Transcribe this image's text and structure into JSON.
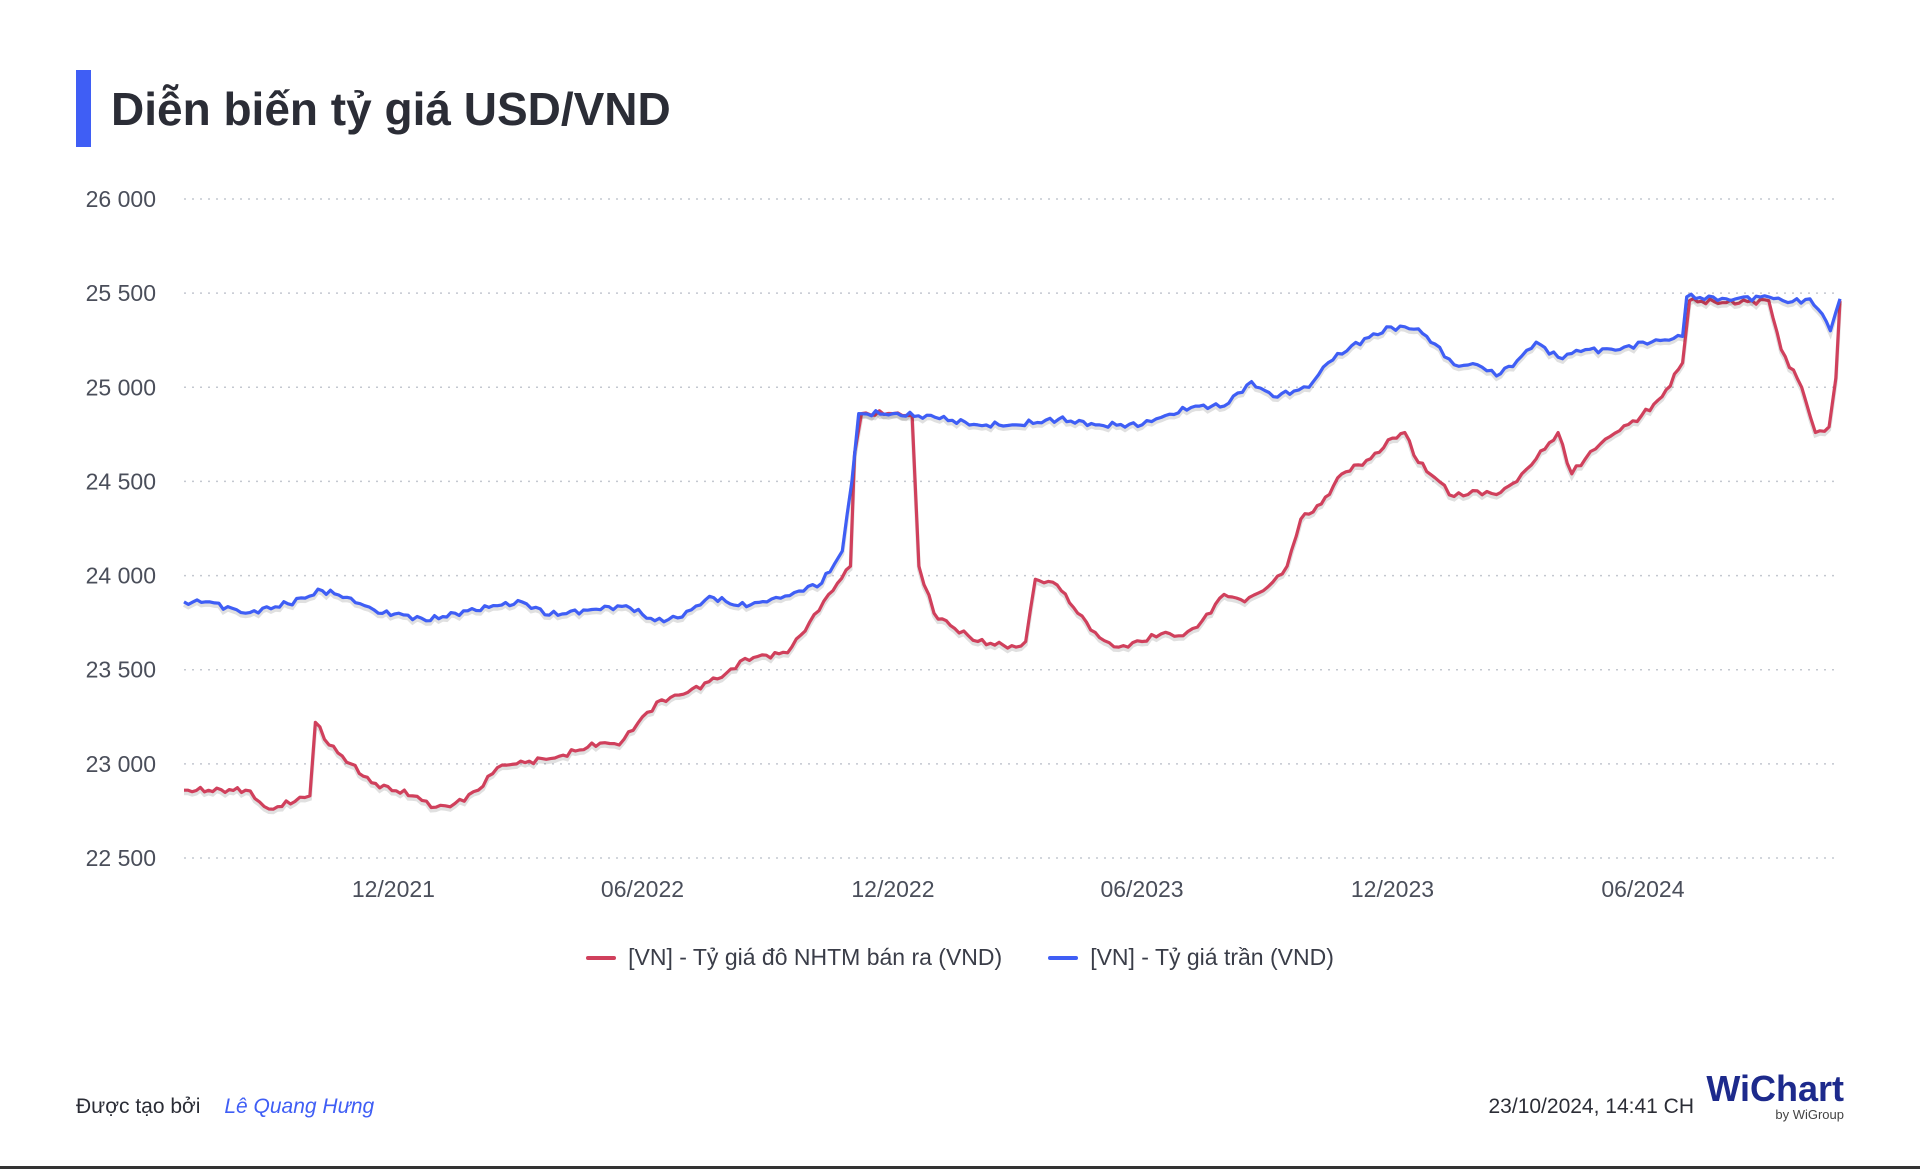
{
  "title": "Diễn biến tỷ giá USD/VND",
  "chart_data": {
    "type": "line",
    "ylim": [
      22500,
      26000
    ],
    "y_ticks": [
      22500,
      23000,
      23500,
      24000,
      24500,
      25000,
      25500,
      26000
    ],
    "y_tick_labels": [
      "22 500",
      "23 000",
      "23 500",
      "24 000",
      "24 500",
      "25 000",
      "25 500",
      "26 000"
    ],
    "x_range": [
      "2021-07-01",
      "2024-10-23"
    ],
    "x_ticks": [
      "2021-12-01",
      "2022-06-01",
      "2022-12-01",
      "2023-06-01",
      "2023-12-01",
      "2024-06-01"
    ],
    "x_tick_labels": [
      "12/2021",
      "06/2022",
      "12/2022",
      "06/2023",
      "12/2023",
      "06/2024"
    ],
    "grid": true,
    "legend_position": "bottom",
    "series": [
      {
        "name": "[VN] - Tỷ giá đô NHTM bán ra (VND)",
        "color": "#d0405c",
        "points": [
          [
            "2021-07-01",
            22860
          ],
          [
            "2021-08-15",
            22860
          ],
          [
            "2021-09-01",
            22760
          ],
          [
            "2021-09-20",
            22800
          ],
          [
            "2021-10-01",
            22830
          ],
          [
            "2021-10-05",
            23220
          ],
          [
            "2021-10-15",
            23100
          ],
          [
            "2021-10-31",
            23000
          ],
          [
            "2021-11-15",
            22900
          ],
          [
            "2021-12-15",
            22830
          ],
          [
            "2022-01-01",
            22770
          ],
          [
            "2022-01-15",
            22790
          ],
          [
            "2022-02-01",
            22860
          ],
          [
            "2022-02-15",
            22980
          ],
          [
            "2022-03-01",
            23000
          ],
          [
            "2022-04-01",
            23040
          ],
          [
            "2022-05-01",
            23110
          ],
          [
            "2022-05-15",
            23100
          ],
          [
            "2022-06-01",
            23250
          ],
          [
            "2022-06-15",
            23340
          ],
          [
            "2022-07-01",
            23370
          ],
          [
            "2022-08-01",
            23480
          ],
          [
            "2022-08-15",
            23560
          ],
          [
            "2022-09-15",
            23590
          ],
          [
            "2022-10-01",
            23750
          ],
          [
            "2022-10-15",
            23900
          ],
          [
            "2022-10-31",
            24050
          ],
          [
            "2022-11-03",
            24650
          ],
          [
            "2022-11-08",
            24860
          ],
          [
            "2022-12-01",
            24860
          ],
          [
            "2022-12-15",
            24850
          ],
          [
            "2022-12-20",
            24050
          ],
          [
            "2022-12-31",
            23800
          ],
          [
            "2023-01-15",
            23720
          ],
          [
            "2023-02-01",
            23650
          ],
          [
            "2023-03-01",
            23620
          ],
          [
            "2023-03-08",
            23650
          ],
          [
            "2023-03-15",
            23980
          ],
          [
            "2023-03-31",
            23950
          ],
          [
            "2023-04-15",
            23800
          ],
          [
            "2023-05-01",
            23670
          ],
          [
            "2023-05-15",
            23620
          ],
          [
            "2023-06-01",
            23650
          ],
          [
            "2023-06-15",
            23690
          ],
          [
            "2023-07-01",
            23680
          ],
          [
            "2023-07-15",
            23760
          ],
          [
            "2023-07-31",
            23900
          ],
          [
            "2023-08-15",
            23860
          ],
          [
            "2023-09-01",
            23940
          ],
          [
            "2023-09-15",
            24050
          ],
          [
            "2023-09-25",
            24300
          ],
          [
            "2023-10-10",
            24380
          ],
          [
            "2023-10-25",
            24540
          ],
          [
            "2023-11-15",
            24620
          ],
          [
            "2023-12-01",
            24730
          ],
          [
            "2023-12-10",
            24760
          ],
          [
            "2023-12-20",
            24600
          ],
          [
            "2024-01-01",
            24520
          ],
          [
            "2024-01-15",
            24420
          ],
          [
            "2024-02-01",
            24450
          ],
          [
            "2024-02-15",
            24430
          ],
          [
            "2024-03-01",
            24500
          ],
          [
            "2024-03-15",
            24620
          ],
          [
            "2024-03-31",
            24760
          ],
          [
            "2024-04-10",
            24540
          ],
          [
            "2024-04-20",
            24620
          ],
          [
            "2024-05-01",
            24700
          ],
          [
            "2024-05-15",
            24770
          ],
          [
            "2024-05-31",
            24850
          ],
          [
            "2024-06-15",
            24950
          ],
          [
            "2024-06-30",
            25130
          ],
          [
            "2024-07-05",
            25460
          ],
          [
            "2024-08-01",
            25450
          ],
          [
            "2024-09-01",
            25460
          ],
          [
            "2024-09-10",
            25200
          ],
          [
            "2024-09-25",
            25000
          ],
          [
            "2024-10-05",
            24760
          ],
          [
            "2024-10-15",
            24790
          ],
          [
            "2024-10-20",
            25050
          ],
          [
            "2024-10-23",
            25460
          ]
        ]
      },
      {
        "name": "[VN] - Tỷ giá trần (VND)",
        "color": "#3f5ef5",
        "points": [
          [
            "2021-07-01",
            23860
          ],
          [
            "2021-07-20",
            23860
          ],
          [
            "2021-08-15",
            23800
          ],
          [
            "2021-09-15",
            23850
          ],
          [
            "2021-10-10",
            23920
          ],
          [
            "2021-10-31",
            23880
          ],
          [
            "2021-11-20",
            23800
          ],
          [
            "2021-12-05",
            23800
          ],
          [
            "2021-12-25",
            23760
          ],
          [
            "2022-01-15",
            23800
          ],
          [
            "2022-02-15",
            23840
          ],
          [
            "2022-03-05",
            23860
          ],
          [
            "2022-03-25",
            23790
          ],
          [
            "2022-04-25",
            23820
          ],
          [
            "2022-05-20",
            23840
          ],
          [
            "2022-06-10",
            23760
          ],
          [
            "2022-06-30",
            23780
          ],
          [
            "2022-07-20",
            23890
          ],
          [
            "2022-08-10",
            23840
          ],
          [
            "2022-08-31",
            23860
          ],
          [
            "2022-09-20",
            23910
          ],
          [
            "2022-10-10",
            23960
          ],
          [
            "2022-10-25",
            24130
          ],
          [
            "2022-11-01",
            24500
          ],
          [
            "2022-11-06",
            24860
          ],
          [
            "2022-12-01",
            24860
          ],
          [
            "2023-01-01",
            24840
          ],
          [
            "2023-02-01",
            24800
          ],
          [
            "2023-03-01",
            24800
          ],
          [
            "2023-04-01",
            24830
          ],
          [
            "2023-05-01",
            24800
          ],
          [
            "2023-06-01",
            24800
          ],
          [
            "2023-06-15",
            24840
          ],
          [
            "2023-07-10",
            24900
          ],
          [
            "2023-07-31",
            24900
          ],
          [
            "2023-08-20",
            25030
          ],
          [
            "2023-09-05",
            24950
          ],
          [
            "2023-09-20",
            24980
          ],
          [
            "2023-10-01",
            25000
          ],
          [
            "2023-10-15",
            25130
          ],
          [
            "2023-11-01",
            25220
          ],
          [
            "2023-11-30",
            25320
          ],
          [
            "2023-12-20",
            25310
          ],
          [
            "2024-01-01",
            25230
          ],
          [
            "2024-01-15",
            25120
          ],
          [
            "2024-02-01",
            25120
          ],
          [
            "2024-02-15",
            25060
          ],
          [
            "2024-03-01",
            25140
          ],
          [
            "2024-03-15",
            25240
          ],
          [
            "2024-03-31",
            25160
          ],
          [
            "2024-04-20",
            25200
          ],
          [
            "2024-05-15",
            25200
          ],
          [
            "2024-06-01",
            25240
          ],
          [
            "2024-06-20",
            25250
          ],
          [
            "2024-06-30",
            25270
          ],
          [
            "2024-07-03",
            25480
          ],
          [
            "2024-08-01",
            25470
          ],
          [
            "2024-09-01",
            25480
          ],
          [
            "2024-09-15",
            25450
          ],
          [
            "2024-10-01",
            25470
          ],
          [
            "2024-10-10",
            25390
          ],
          [
            "2024-10-16",
            25300
          ],
          [
            "2024-10-20",
            25400
          ],
          [
            "2024-10-23",
            25470
          ]
        ]
      }
    ]
  },
  "footer": {
    "created_by_label": "Được tạo bởi",
    "author": "Lê Quang Hưng",
    "timestamp": "23/10/2024, 14:41 CH",
    "brand": "WiChart",
    "brand_sub": "by WiGroup"
  }
}
